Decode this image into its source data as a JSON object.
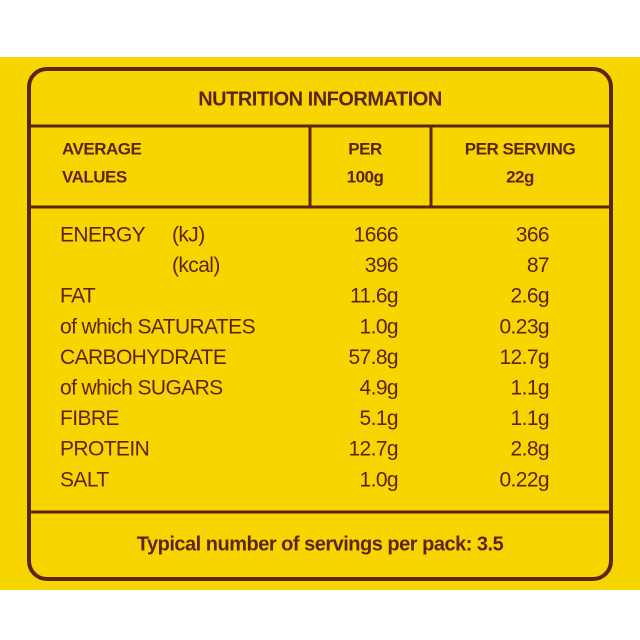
{
  "title": "NUTRITION INFORMATION",
  "header": {
    "label": [
      "AVERAGE",
      "VALUES"
    ],
    "per_100g": [
      "PER",
      "100g"
    ],
    "per_serving": [
      "PER SERVING",
      "22g"
    ]
  },
  "rows": [
    {
      "label": "ENERGY",
      "unit": "(kJ)",
      "per_100g": 1666,
      "per_serving": 366
    },
    {
      "unit": "(kcal)",
      "per_100g": 396,
      "per_serving": 87
    },
    {
      "label": "FAT",
      "per_100g": "11.6g",
      "per_serving": "2.6g"
    },
    {
      "label": "of which SATURATES",
      "per_100g": "1.0g",
      "per_serving": "0.23g"
    },
    {
      "label": "CARBOHYDRATE",
      "per_100g": "57.8g",
      "per_serving": "12.7g"
    },
    {
      "label": "of which SUGARS",
      "per_100g": "4.9g",
      "per_serving": "1.1g"
    },
    {
      "label": "FIBRE",
      "per_100g": "5.1g",
      "per_serving": "1.1g"
    },
    {
      "label": "PROTEIN",
      "per_100g": "12.7g",
      "per_serving": "2.8g"
    },
    {
      "label": "SALT",
      "per_100g": "1.0g",
      "per_serving": "0.22g"
    }
  ],
  "footer": "Typical number of servings per pack: 3.5"
}
